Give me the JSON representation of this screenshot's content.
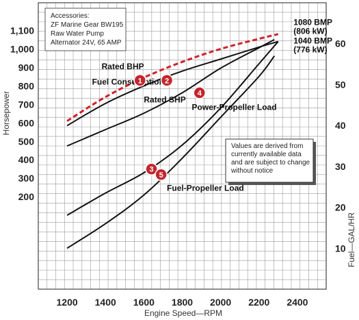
{
  "chart_data": {
    "type": "line",
    "xlabel": "Engine Speed—RPM",
    "ylabel_left": "Horsepower",
    "ylabel_right": "Fuel—GAL/HR",
    "x_ticks": [
      "1200",
      "1400",
      "1600",
      "1800",
      "2000",
      "2200",
      "2400"
    ],
    "y_left_ticks": [
      "200",
      "300",
      "400",
      "500",
      "600",
      "700",
      "800",
      "900",
      "1,000",
      "1,100"
    ],
    "y_right_ticks": [
      "10",
      "20",
      "30",
      "40",
      "50",
      "60"
    ],
    "xlim": [
      1050,
      2550
    ],
    "ylim_left": [
      -300,
      1250
    ],
    "ylim_right": [
      0,
      70
    ],
    "grid": true,
    "accessories": {
      "title": "Accessories:",
      "lines": [
        "ZF Marine Gear BW195",
        "Raw Water Pump",
        "Alternator 24V, 65 AMP"
      ]
    },
    "note": [
      "Values are derived from",
      "currently available data",
      "and are subject to change",
      "without notice"
    ],
    "series": [
      {
        "name": "Rated BHP",
        "marker": "1",
        "axis": "left",
        "color": "#d0202a",
        "dashed": true,
        "x": [
          1200,
          1400,
          1600,
          1800,
          2000,
          2200,
          2300
        ],
        "y": [
          610,
          740,
          845,
          930,
          1000,
          1055,
          1080
        ]
      },
      {
        "name": "Rated SHP",
        "marker": "2",
        "axis": "left",
        "color": "#111111",
        "dashed": false,
        "x": [
          1200,
          1400,
          1600,
          1800,
          2000,
          2200,
          2300
        ],
        "y": [
          585,
          705,
          800,
          880,
          945,
          1010,
          1040
        ]
      },
      {
        "name": "Power-Propeller Load",
        "marker": "3",
        "axis": "left",
        "color": "#111111",
        "dashed": false,
        "x": [
          1200,
          1400,
          1600,
          1800,
          2000,
          2200,
          2300
        ],
        "y": [
          100,
          220,
          330,
          480,
          680,
          920,
          1040
        ]
      },
      {
        "name": "Fuel Consumption",
        "marker": "4",
        "axis": "right",
        "color": "#111111",
        "dashed": false,
        "x": [
          1200,
          1400,
          1600,
          1800,
          2000,
          2200,
          2280
        ],
        "y": [
          35,
          39,
          43,
          48,
          54,
          59,
          61
        ]
      },
      {
        "name": "Fuel-Propeller Load",
        "marker": "5",
        "axis": "right",
        "color": "#111111",
        "dashed": false,
        "x": [
          1200,
          1400,
          1600,
          1800,
          2000,
          2200,
          2280
        ],
        "y": [
          10,
          16,
          23,
          32,
          42,
          52,
          57
        ]
      }
    ],
    "annotations": [
      {
        "lines": [
          "1080 BMP",
          "(806 kW)"
        ],
        "x": 2380,
        "y": 1130,
        "axis": "left"
      },
      {
        "lines": [
          "1040 BMP",
          "(776 kW)"
        ],
        "x": 2380,
        "y": 1030,
        "axis": "left"
      },
      {
        "lines": [
          "Rated BHP"
        ],
        "x": 1380,
        "y": 890,
        "axis": "left"
      },
      {
        "lines": [
          "Rated SHP"
        ],
        "x": 1600,
        "y": 710,
        "axis": "left"
      },
      {
        "lines": [
          "Power-Propeller Load"
        ],
        "x": 1850,
        "y": 670,
        "axis": "left"
      },
      {
        "lines": [
          "Fuel Consumption"
        ],
        "x": 1330,
        "y": 50,
        "axis": "right"
      },
      {
        "lines": [
          "Fuel-Propeller Load"
        ],
        "x": 1720,
        "y": 24,
        "axis": "right"
      }
    ],
    "marker_positions": [
      {
        "label": "1",
        "x": 1580,
        "y": 830,
        "axis": "left"
      },
      {
        "label": "2",
        "x": 1720,
        "y": 830,
        "axis": "left"
      },
      {
        "label": "3",
        "x": 1640,
        "y": 350,
        "axis": "left"
      },
      {
        "label": "4",
        "x": 1890,
        "y": 48,
        "axis": "right"
      },
      {
        "label": "5",
        "x": 1690,
        "y": 28,
        "axis": "right"
      }
    ]
  }
}
